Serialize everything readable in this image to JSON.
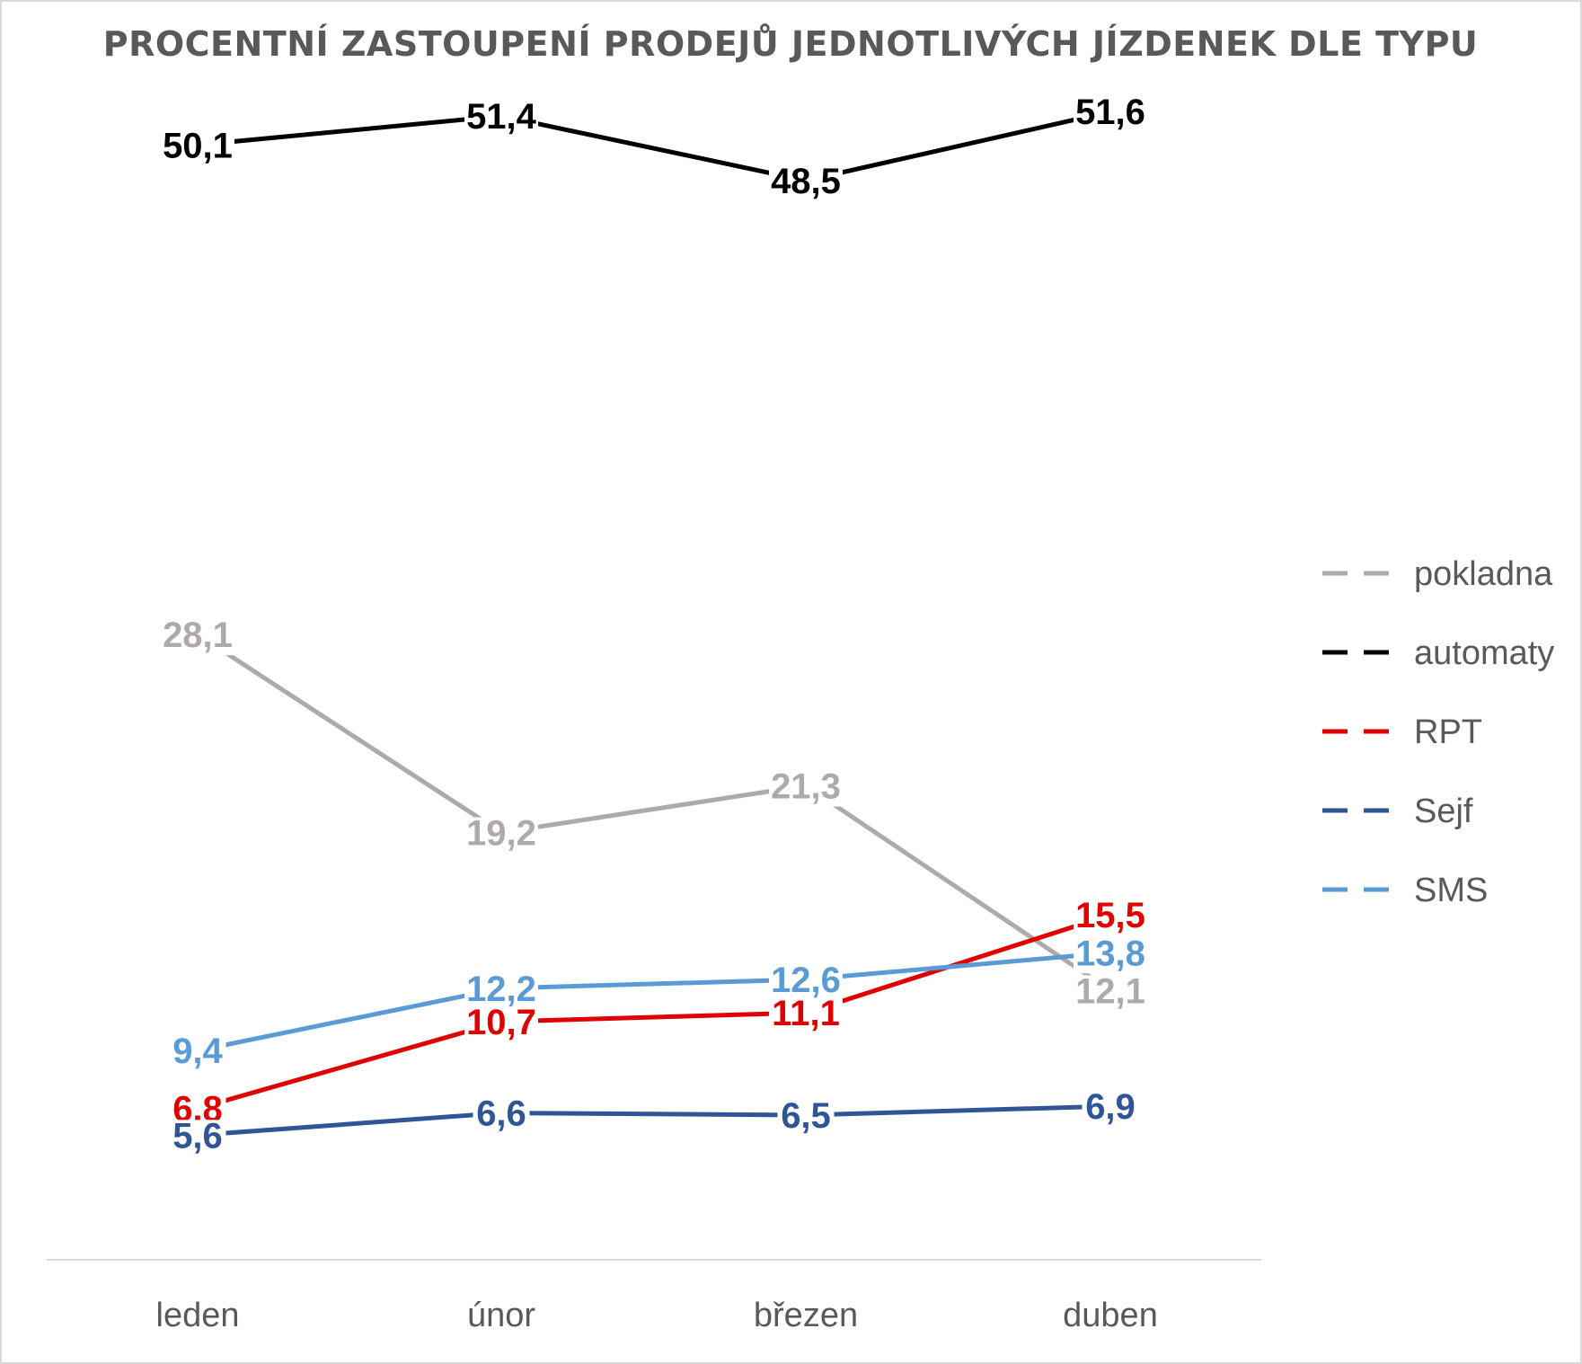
{
  "chart_data": {
    "type": "line",
    "title": "PROCENTNÍ ZASTOUPENÍ PRODEJŮ JEDNOTLIVÝCH JÍZDENEK DLE TYPU",
    "xlabel": "",
    "ylabel": "",
    "categories": [
      "leden",
      "únor",
      "březen",
      "duben"
    ],
    "ylim": [
      0,
      55
    ],
    "grid": false,
    "legend_position": "right",
    "series": [
      {
        "name": "pokladna",
        "color": "#aeaaaa",
        "values": [
          28.1,
          19.2,
          21.3,
          12.1
        ],
        "labels": [
          "28,1",
          "19,2",
          "21,3",
          "12,1"
        ]
      },
      {
        "name": "automaty",
        "color": "#000000",
        "values": [
          50.1,
          51.4,
          48.5,
          51.6
        ],
        "labels": [
          "50,1",
          "51,4",
          "48,5",
          "51,6"
        ]
      },
      {
        "name": "RPT",
        "color": "#e00000",
        "values": [
          6.8,
          10.7,
          11.1,
          15.5
        ],
        "labels": [
          "6,8",
          "10,7",
          "11,1",
          "15,5"
        ]
      },
      {
        "name": "Sejf",
        "color": "#2f5597",
        "values": [
          5.6,
          6.6,
          6.5,
          6.9
        ],
        "labels": [
          "5,6",
          "6,6",
          "6,5",
          "6,9"
        ]
      },
      {
        "name": "SMS",
        "color": "#5b9bd5",
        "values": [
          9.4,
          12.2,
          12.6,
          13.8
        ],
        "labels": [
          "9,4",
          "12,2",
          "12,6",
          "13,8"
        ]
      }
    ]
  }
}
